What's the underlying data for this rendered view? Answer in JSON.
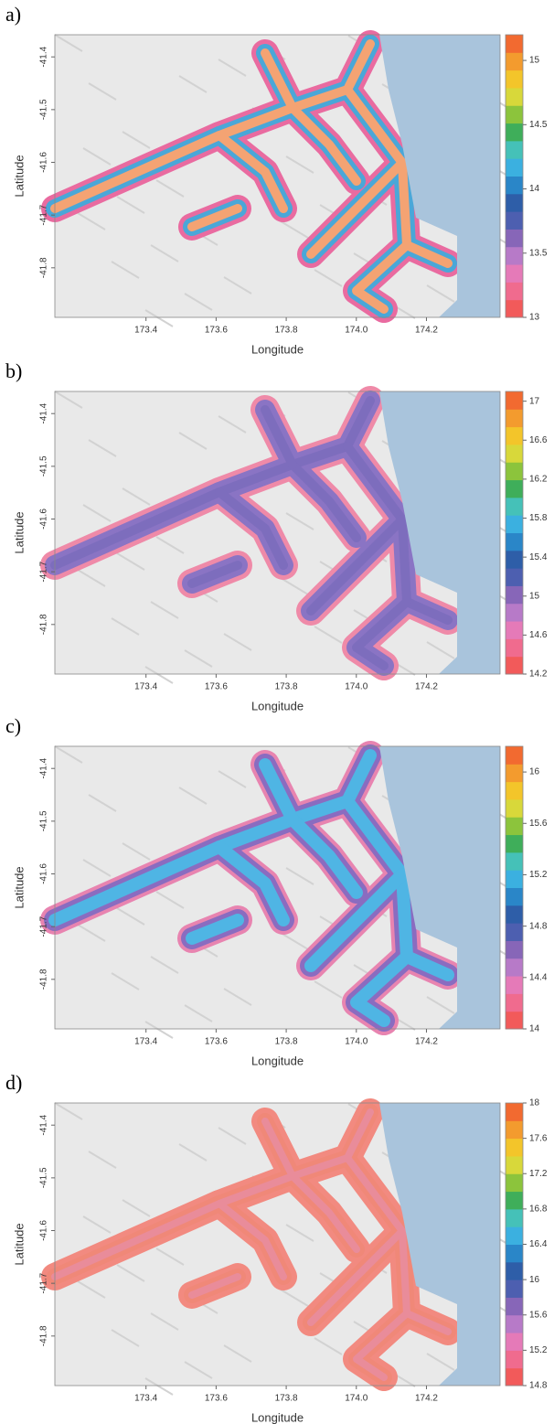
{
  "panels": [
    {
      "label": "a)",
      "xlabel": "Longitude",
      "ylabel": "Latitude",
      "xlim": [
        173.14,
        174.41
      ],
      "xticks": [
        173.4,
        173.6,
        173.8,
        {
          "value": 174,
          "label": "174.0"
        },
        174.2
      ],
      "ylim": [
        -41.894,
        -41.358
      ],
      "yticks": [
        -41.4,
        -41.5,
        -41.6,
        -41.7,
        -41.8
      ],
      "colorbar": {
        "lim": [
          13,
          15.2
        ],
        "ticks": [
          13,
          13.5,
          14,
          14.5,
          15
        ]
      }
    },
    {
      "label": "b)",
      "xlabel": "Longitude",
      "ylabel": "Latitude",
      "xlim": [
        173.14,
        174.41
      ],
      "xticks": [
        173.4,
        173.6,
        173.8,
        {
          "value": 174,
          "label": "174.0"
        },
        174.2
      ],
      "ylim": [
        -41.894,
        -41.358
      ],
      "yticks": [
        -41.4,
        -41.5,
        -41.6,
        -41.7,
        -41.8
      ],
      "colorbar": {
        "lim": [
          14.2,
          17.1
        ],
        "ticks": [
          14.2,
          14.6,
          15,
          15.4,
          15.8,
          16.2,
          16.6,
          17
        ]
      }
    },
    {
      "label": "c)",
      "xlabel": "Longitude",
      "ylabel": "Latitude",
      "xlim": [
        173.14,
        174.41
      ],
      "xticks": [
        173.4,
        173.6,
        173.8,
        {
          "value": 174,
          "label": "174.0"
        },
        174.2
      ],
      "ylim": [
        -41.894,
        -41.358
      ],
      "yticks": [
        -41.4,
        -41.5,
        -41.6,
        -41.7,
        -41.8
      ],
      "colorbar": {
        "lim": [
          14,
          16.2
        ],
        "ticks": [
          14,
          14.4,
          14.8,
          15.2,
          15.6,
          16
        ]
      }
    },
    {
      "label": "d)",
      "xlabel": "Longitude",
      "ylabel": "Latitude",
      "xlim": [
        173.14,
        174.41
      ],
      "xticks": [
        173.4,
        173.6,
        173.8,
        {
          "value": 174,
          "label": "174.0"
        },
        174.2
      ],
      "ylim": [
        -41.894,
        -41.358
      ],
      "yticks": [
        -41.4,
        -41.5,
        -41.6,
        -41.7,
        -41.8
      ],
      "colorbar": {
        "lim": [
          14.8,
          18
        ],
        "ticks": [
          14.8,
          15.2,
          15.6,
          16,
          16.4,
          16.8,
          17.2,
          17.6,
          18
        ]
      }
    }
  ]
}
